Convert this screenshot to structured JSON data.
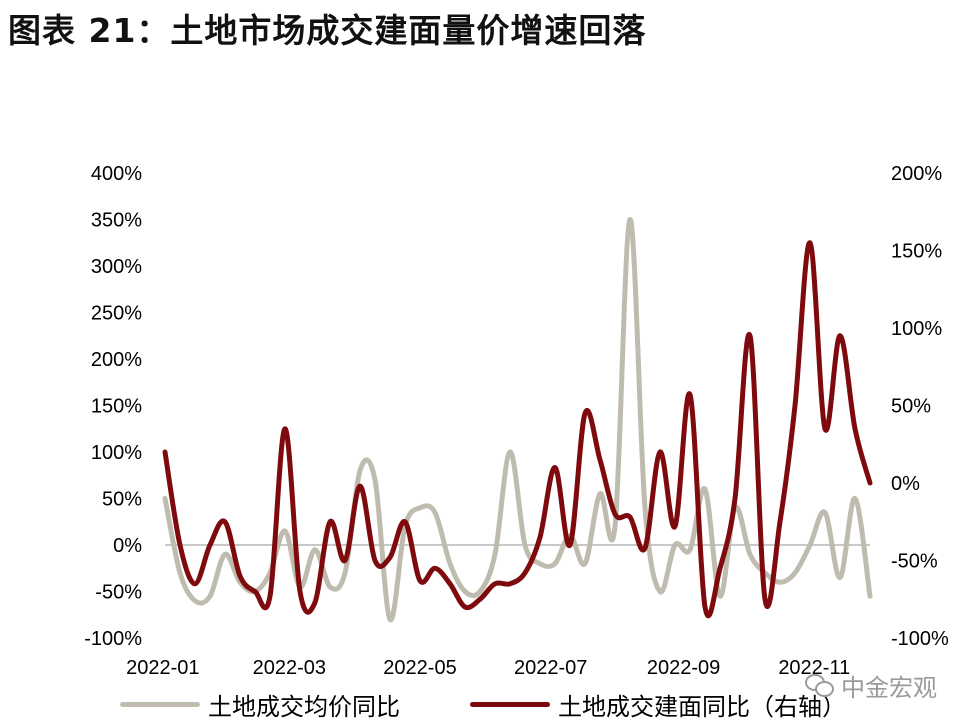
{
  "title": "图表 21：土地市场成交建面量价增速回落",
  "watermark": "中金宏观",
  "watermark_icon": "wechat-icon",
  "chart_data": {
    "type": "line",
    "title": "图表 21：土地市场成交建面量价增速回落",
    "xlabel": "",
    "ylabel": "",
    "x_ticks": [
      "2022-01",
      "2022-03",
      "2022-05",
      "2022-07",
      "2022-09",
      "2022-11"
    ],
    "y_left": {
      "ticks": [
        "400%",
        "350%",
        "300%",
        "250%",
        "200%",
        "150%",
        "100%",
        "50%",
        "0%",
        "-50%",
        "-100%"
      ],
      "range": [
        -100,
        400
      ]
    },
    "y_right": {
      "ticks": [
        "200%",
        "150%",
        "100%",
        "50%",
        "0%",
        "-50%",
        "-100%"
      ],
      "range": [
        -100,
        200
      ]
    },
    "zero_line": true,
    "grid": false,
    "legend_position": "bottom",
    "series": [
      {
        "name": "土地成交均价同比",
        "axis": "left",
        "color": "#bfbcaf",
        "x": [
          "2022-01-02",
          "2022-01-09",
          "2022-01-16",
          "2022-01-23",
          "2022-01-30",
          "2022-02-06",
          "2022-02-13",
          "2022-02-20",
          "2022-02-27",
          "2022-03-06",
          "2022-03-13",
          "2022-03-20",
          "2022-03-27",
          "2022-04-03",
          "2022-04-10",
          "2022-04-17",
          "2022-04-24",
          "2022-05-01",
          "2022-05-08",
          "2022-05-15",
          "2022-05-22",
          "2022-05-29",
          "2022-06-05",
          "2022-06-12",
          "2022-06-19",
          "2022-06-26",
          "2022-07-03",
          "2022-07-10",
          "2022-07-17",
          "2022-07-24",
          "2022-07-31",
          "2022-08-07",
          "2022-08-14",
          "2022-08-21",
          "2022-08-28",
          "2022-09-04",
          "2022-09-11",
          "2022-09-18",
          "2022-09-25",
          "2022-10-02",
          "2022-10-09",
          "2022-10-16",
          "2022-10-23",
          "2022-10-30",
          "2022-11-06",
          "2022-11-13",
          "2022-11-20",
          "2022-11-27"
        ],
        "values": [
          50,
          -30,
          -60,
          -55,
          -10,
          -40,
          -50,
          -30,
          15,
          -45,
          -5,
          -45,
          -30,
          80,
          70,
          -80,
          20,
          40,
          35,
          -20,
          -50,
          -50,
          -10,
          100,
          0,
          -20,
          -20,
          10,
          -20,
          55,
          20,
          350,
          40,
          -50,
          0,
          -5,
          60,
          -55,
          40,
          -10,
          -30,
          -40,
          -30,
          0,
          35,
          -35,
          50,
          -55
        ]
      },
      {
        "name": "土地成交建面同比（右轴）",
        "axis": "right",
        "color": "#7f0a0e",
        "x": [
          "2022-01-02",
          "2022-01-09",
          "2022-01-16",
          "2022-01-23",
          "2022-01-30",
          "2022-02-06",
          "2022-02-13",
          "2022-02-20",
          "2022-02-27",
          "2022-03-06",
          "2022-03-13",
          "2022-03-20",
          "2022-03-27",
          "2022-04-03",
          "2022-04-10",
          "2022-04-17",
          "2022-04-24",
          "2022-05-01",
          "2022-05-08",
          "2022-05-15",
          "2022-05-22",
          "2022-05-29",
          "2022-06-05",
          "2022-06-12",
          "2022-06-19",
          "2022-06-26",
          "2022-07-03",
          "2022-07-10",
          "2022-07-17",
          "2022-07-24",
          "2022-07-31",
          "2022-08-07",
          "2022-08-14",
          "2022-08-21",
          "2022-08-28",
          "2022-09-04",
          "2022-09-11",
          "2022-09-18",
          "2022-09-25",
          "2022-10-02",
          "2022-10-09",
          "2022-10-16",
          "2022-10-23",
          "2022-10-30",
          "2022-11-06",
          "2022-11-13",
          "2022-11-20",
          "2022-11-27"
        ],
        "values": [
          20,
          -40,
          -65,
          -40,
          -25,
          -60,
          -70,
          -73,
          35,
          -70,
          -77,
          -25,
          -50,
          -2,
          -50,
          -48,
          -25,
          -63,
          -55,
          -65,
          -80,
          -75,
          -65,
          -65,
          -58,
          -35,
          10,
          -40,
          45,
          15,
          -20,
          -22,
          -42,
          20,
          -28,
          57,
          -80,
          -55,
          -10,
          95,
          -75,
          -25,
          50,
          155,
          35,
          95,
          35,
          0
        ]
      }
    ]
  }
}
